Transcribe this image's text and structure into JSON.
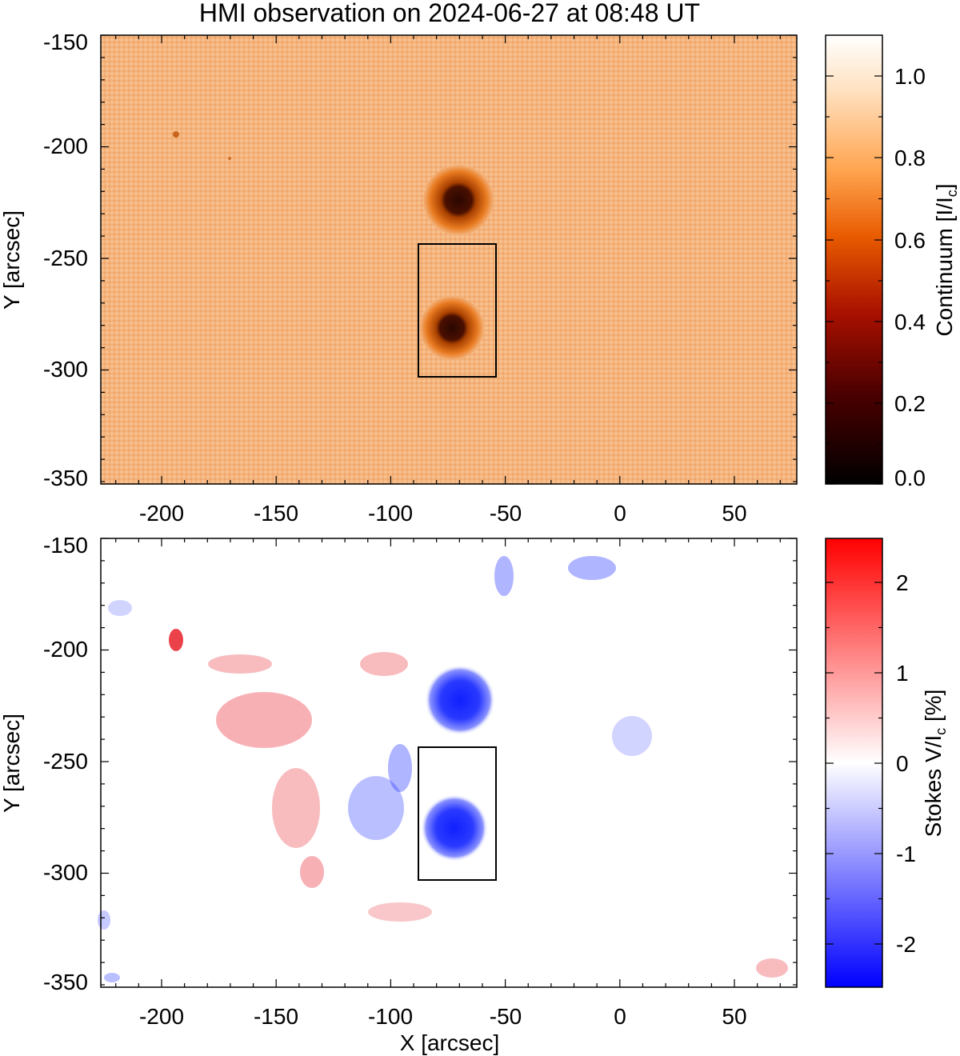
{
  "title": "HMI observation on 2024-06-27 at 08:48 UT",
  "panels": [
    {
      "name": "continuum",
      "y_axis_label": "Y [arcsec]",
      "x_ticks": [
        "-200",
        "-150",
        "-100",
        "-50",
        "0",
        "50"
      ],
      "y_ticks": [
        "-150",
        "-200",
        "-250",
        "-300",
        "-350"
      ],
      "colorbar": {
        "label_main": "Continuum [I/I",
        "label_sub": "c",
        "label_end": "]",
        "ticks": [
          "1.0",
          "0.8",
          "0.6",
          "0.4",
          "0.2",
          "0.0"
        ],
        "stops": [
          "#000000",
          "#3a0000",
          "#7a0a00",
          "#b81a00",
          "#e85a00",
          "#ff8a1a",
          "#ffb86e",
          "#ffe2c2",
          "#ffffff"
        ]
      },
      "background_color": "#f4b27a"
    },
    {
      "name": "stokes-v",
      "y_axis_label": "Y [arcsec]",
      "x_axis_label": "X [arcsec]",
      "x_ticks": [
        "-200",
        "-150",
        "-100",
        "-50",
        "0",
        "50"
      ],
      "y_ticks": [
        "-150",
        "-200",
        "-250",
        "-300",
        "-350"
      ],
      "colorbar": {
        "label_main": "Stokes V/I",
        "label_sub": "c",
        "label_end": " [%]",
        "ticks": [
          "2",
          "1",
          "0",
          "-1",
          "-2"
        ],
        "stops": [
          "#ff0000",
          "#ff8080",
          "#ffffff",
          "#8080ff",
          "#0000ff"
        ]
      },
      "background_color": "#ffffff"
    }
  ],
  "colors": {
    "umbra": "#3a0a00",
    "penumbra": "#e07018",
    "negative_polarity": "#1a2aff",
    "positive_polarity": "#e8202a"
  }
}
